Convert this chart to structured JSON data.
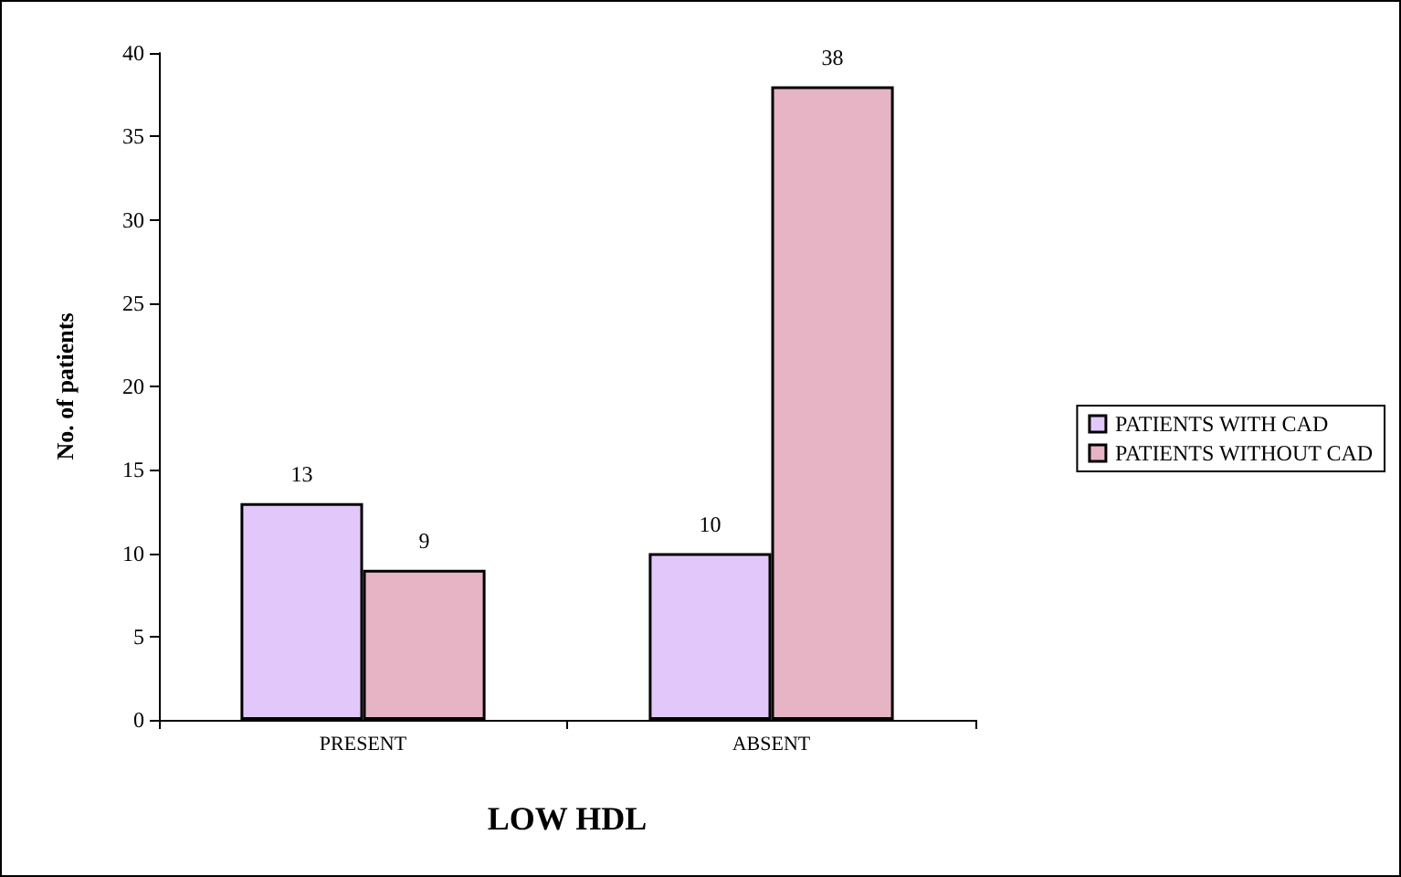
{
  "chart_data": {
    "type": "bar",
    "xlabel": "LOW HDL",
    "ylabel": "No. of patients",
    "categories": [
      "PRESENT",
      "ABSENT"
    ],
    "series": [
      {
        "name": "PATIENTS WITH CAD",
        "color": "#e2c8fa",
        "values": [
          13,
          10
        ]
      },
      {
        "name": "PATIENTS WITHOUT CAD",
        "color": "#e6b4c4",
        "values": [
          9,
          38
        ]
      }
    ],
    "ylim": [
      0,
      40
    ],
    "yticks": [
      0,
      5,
      10,
      15,
      20,
      25,
      30,
      35,
      40
    ],
    "grid": false,
    "legend": "right",
    "data_labels": true
  }
}
